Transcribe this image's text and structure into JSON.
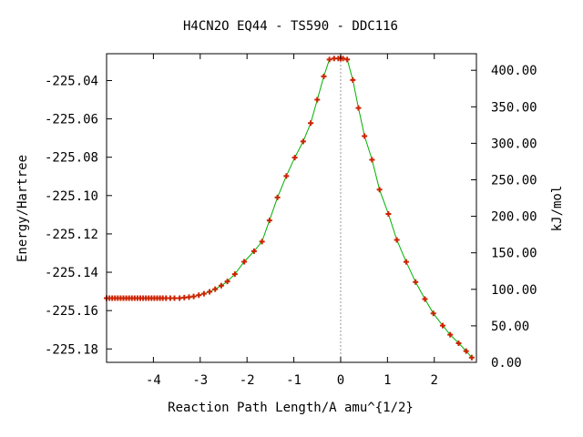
{
  "chart_data": {
    "type": "line",
    "title": "H4CN2O   EQ44 - TS590 - DDC116",
    "xlabel": "Reaction Path Length/A amu^{1/2}",
    "ylabel": "Energy/Hartree",
    "y2label": "kJ/mol",
    "xlim": [
      -5.0,
      2.9
    ],
    "ylim": [
      -225.187,
      -225.026
    ],
    "y2lim": [
      0.0,
      422.7
    ],
    "x_ticks": [
      "-4",
      "-3",
      "-2",
      "-1",
      "0",
      "1",
      "2"
    ],
    "x_tick_values": [
      -4,
      -3,
      -2,
      -1,
      0,
      1,
      2
    ],
    "y_ticks": [
      "-225.04",
      "-225.06",
      "-225.08",
      "-225.10",
      "-225.12",
      "-225.14",
      "-225.16",
      "-225.18"
    ],
    "y_tick_values": [
      -225.04,
      -225.06,
      -225.08,
      -225.1,
      -225.12,
      -225.14,
      -225.16,
      -225.18
    ],
    "y2_ticks": [
      "400.00",
      "350.00",
      "300.00",
      "250.00",
      "200.00",
      "150.00",
      "100.00",
      "50.00",
      "0.00"
    ],
    "y2_tick_values": [
      400,
      350,
      300,
      250,
      200,
      150,
      100,
      50,
      0
    ],
    "ts_line_x": 0.0,
    "colors": {
      "curve": "#00b000",
      "points": "#cc2200",
      "ts_line": "#999999"
    },
    "series": [
      {
        "x": [
          -5.0,
          -4.94,
          -4.88,
          -4.82,
          -4.76,
          -4.7,
          -4.64,
          -4.58,
          -4.52,
          -4.46,
          -4.4,
          -4.34,
          -4.28,
          -4.22,
          -4.16,
          -4.1,
          -4.04,
          -3.98,
          -3.92,
          -3.86,
          -3.8,
          -3.73,
          -3.64,
          -3.55,
          -3.44,
          -3.34,
          -3.24,
          -3.14,
          -3.03,
          -2.92,
          -2.8,
          -2.68,
          -2.55,
          -2.42,
          -2.26,
          -2.06,
          -1.85,
          -1.68,
          -1.52,
          -1.35,
          -1.16,
          -0.98,
          -0.8,
          -0.64,
          -0.5,
          -0.36,
          -0.24,
          -0.14,
          -0.05,
          0.0,
          0.05,
          0.14,
          0.26,
          0.38,
          0.51,
          0.67,
          0.83,
          1.02,
          1.2,
          1.4,
          1.6,
          1.8,
          1.98,
          2.18,
          2.34,
          2.52,
          2.68,
          2.8
        ],
        "y": [
          -225.1535,
          -225.1535,
          -225.1535,
          -225.1535,
          -225.1535,
          -225.1535,
          -225.1535,
          -225.1535,
          -225.1535,
          -225.1535,
          -225.1535,
          -225.1535,
          -225.1535,
          -225.1535,
          -225.1535,
          -225.1535,
          -225.1535,
          -225.1535,
          -225.1535,
          -225.1535,
          -225.1535,
          -225.1535,
          -225.1535,
          -225.1535,
          -225.1535,
          -225.1532,
          -225.153,
          -225.1526,
          -225.152,
          -225.1512,
          -225.1502,
          -225.1488,
          -225.147,
          -225.1448,
          -225.141,
          -225.1345,
          -225.129,
          -225.124,
          -225.113,
          -225.101,
          -225.0898,
          -225.0802,
          -225.0718,
          -225.0622,
          -225.05,
          -225.0378,
          -225.029,
          -225.0285,
          -225.0285,
          -225.0285,
          -225.0285,
          -225.029,
          -225.0397,
          -225.0543,
          -225.069,
          -225.0813,
          -225.0969,
          -225.1096,
          -225.1231,
          -225.1346,
          -225.1451,
          -225.154,
          -225.1615,
          -225.1678,
          -225.1726,
          -225.177,
          -225.1811,
          -225.1845
        ]
      }
    ]
  }
}
